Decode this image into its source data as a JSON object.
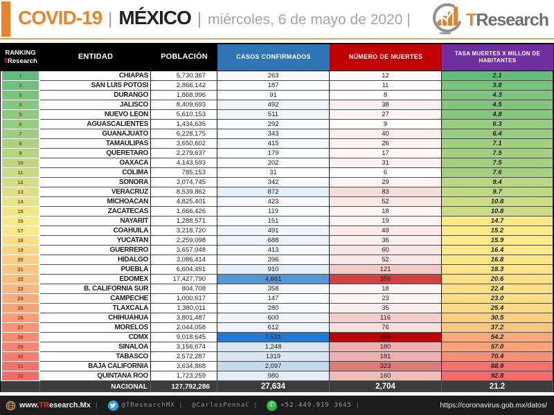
{
  "header": {
    "title": "COVID-19",
    "sep": "|",
    "country": "MÉXICO",
    "date": "miércoles, 6 de mayo de 2020 |",
    "logo_t": "T",
    "logo_rest": "Research",
    "accent_color": "#E4852E"
  },
  "table": {
    "headers": {
      "ranking_line1": "RANKING",
      "ranking_t": "T",
      "ranking_rest": "Research",
      "entidad": "ENTIDAD",
      "poblacion": "POBLACIÓN",
      "casos": "CASOS CONFIRMADOS",
      "muertes": "NÚMERO DE MUERTES",
      "tasa": "TASA MUERTES X MILLON DE HABITANTES",
      "casos_color": "#2E75B6",
      "muertes_color": "#C00000",
      "tasa_color": "#7030A0"
    },
    "rows": [
      {
        "rank": "1",
        "entidad": "CHIAPAS",
        "poblacion": "5,730,367",
        "casos": "263",
        "muertes": "12",
        "tasa": "2.1",
        "colors": {
          "rank": "#63BE7B",
          "casos": "#F7FAFD",
          "muertes": "#FEFAFA",
          "tasa": "#63BE7B"
        }
      },
      {
        "rank": "2",
        "entidad": "SAN LUIS POTOSI",
        "poblacion": "2,866,142",
        "casos": "187",
        "muertes": "11",
        "tasa": "3.8",
        "colors": {
          "rank": "#6DC17C",
          "casos": "#FDFEFF",
          "muertes": "#FEFAFA",
          "tasa": "#78C47C"
        }
      },
      {
        "rank": "3",
        "entidad": "DURANGO",
        "poblacion": "1,868,996",
        "casos": "91",
        "muertes": "8",
        "tasa": "4.3",
        "colors": {
          "rank": "#77C47C",
          "casos": "#FDFEFF",
          "muertes": "#FEFCFC",
          "tasa": "#7EC67D"
        }
      },
      {
        "rank": "4",
        "entidad": "JALISCO",
        "poblacion": "8,409,693",
        "casos": "492",
        "muertes": "38",
        "tasa": "4.5",
        "colors": {
          "rank": "#81C77D",
          "casos": "#EFF5FB",
          "muertes": "#FBEFEE",
          "tasa": "#80C67D"
        }
      },
      {
        "rank": "5",
        "entidad": "NUEVO LEON",
        "poblacion": "5,610,153",
        "casos": "511",
        "muertes": "27",
        "tasa": "4.8",
        "colors": {
          "rank": "#8BCA7D",
          "casos": "#EFF5FB",
          "muertes": "#FCF3F2",
          "tasa": "#84C77D"
        }
      },
      {
        "rank": "6",
        "entidad": "AGUASCALIENTES",
        "poblacion": "1,434,635",
        "casos": "292",
        "muertes": "9",
        "tasa": "6.3",
        "colors": {
          "rank": "#95CD7E",
          "casos": "#F7FAFD",
          "muertes": "#FEFBFB",
          "tasa": "#96CD7E"
        }
      },
      {
        "rank": "7",
        "entidad": "GUANAJUATO",
        "poblacion": "6,228,175",
        "casos": "343",
        "muertes": "40",
        "tasa": "6.4",
        "colors": {
          "rank": "#9FCF7E",
          "casos": "#F6F9FD",
          "muertes": "#FBEEED",
          "tasa": "#97CD7E"
        }
      },
      {
        "rank": "8",
        "entidad": "TAMAULIPAS",
        "poblacion": "3,650,602",
        "casos": "415",
        "muertes": "26",
        "tasa": "7.1",
        "colors": {
          "rank": "#AAD27F",
          "casos": "#F5F9FD",
          "muertes": "#FCF4F3",
          "tasa": "#A0CF7E"
        }
      },
      {
        "rank": "9",
        "entidad": "QUERETARO",
        "poblacion": "2,279,637",
        "casos": "179",
        "muertes": "17",
        "tasa": "7.5",
        "colors": {
          "rank": "#B4D580",
          "casos": "#FBFCFE",
          "muertes": "#FDF6F5",
          "tasa": "#A4D17F"
        }
      },
      {
        "rank": "10",
        "entidad": "OAXACA",
        "poblacion": "4,143,593",
        "casos": "202",
        "muertes": "31",
        "tasa": "7.5",
        "colors": {
          "rank": "#BED880",
          "casos": "#FAFCFE",
          "muertes": "#FCF2F1",
          "tasa": "#A4D17F"
        }
      },
      {
        "rank": "11",
        "entidad": "COLIMA",
        "poblacion": "785,153",
        "casos": "31",
        "muertes": "6",
        "tasa": "7.6",
        "colors": {
          "rank": "#C8DB81",
          "casos": "#FFFFFF",
          "muertes": "#FFFFFF",
          "tasa": "#A5D17F"
        }
      },
      {
        "rank": "12",
        "entidad": "SONORA",
        "poblacion": "3,074,745",
        "casos": "342",
        "muertes": "29",
        "tasa": "9.4",
        "colors": {
          "rank": "#D2DE81",
          "casos": "#F6F9FD",
          "muertes": "#FCF3F2",
          "tasa": "#BBD780"
        }
      },
      {
        "rank": "13",
        "entidad": "VERACRUZ",
        "poblacion": "8,539,862",
        "casos": "872",
        "muertes": "83",
        "tasa": "9.7",
        "colors": {
          "rank": "#DCE182",
          "casos": "#E4EEF9",
          "muertes": "#F6DCDA",
          "tasa": "#BFD980"
        }
      },
      {
        "rank": "14",
        "entidad": "MICHOACAN",
        "poblacion": "4,825,401",
        "casos": "423",
        "muertes": "52",
        "tasa": "10.8",
        "colors": {
          "rank": "#E6E483",
          "casos": "#F5F9FD",
          "muertes": "#F9E8E6",
          "tasa": "#CCDC81"
        }
      },
      {
        "rank": "15",
        "entidad": "ZACATECAS",
        "poblacion": "1,666,426",
        "casos": "119",
        "muertes": "18",
        "tasa": "10.8",
        "colors": {
          "rank": "#F0E783",
          "casos": "#FCFDFF",
          "muertes": "#FDF6F5",
          "tasa": "#CCDC81"
        }
      },
      {
        "rank": "16",
        "entidad": "NAYARIT",
        "poblacion": "1,288,571",
        "casos": "151",
        "muertes": "19",
        "tasa": "14.7",
        "colors": {
          "rank": "#FAEA84",
          "casos": "#FBFCFE",
          "muertes": "#FDF5F4",
          "tasa": "#FBEA84"
        }
      },
      {
        "rank": "17",
        "entidad": "COAHUILA",
        "poblacion": "3,218,720",
        "casos": "491",
        "muertes": "49",
        "tasa": "15.2",
        "colors": {
          "rank": "#FFE783",
          "casos": "#EFF5FB",
          "muertes": "#FAE9E7",
          "tasa": "#FFEB84"
        }
      },
      {
        "rank": "18",
        "entidad": "YUCATAN",
        "poblacion": "2,259,098",
        "casos": "688",
        "muertes": "36",
        "tasa": "15.9",
        "colors": {
          "rank": "#FFDE83",
          "casos": "#EAF2FA",
          "muertes": "#FBEFEE",
          "tasa": "#FFEA84"
        }
      },
      {
        "rank": "19",
        "entidad": "GUERRERO",
        "poblacion": "3,657,048",
        "casos": "413",
        "muertes": "60",
        "tasa": "16.4",
        "colors": {
          "rank": "#FED680",
          "casos": "#F5F9FD",
          "muertes": "#F8E4E2",
          "tasa": "#FFE984"
        }
      },
      {
        "rank": "20",
        "entidad": "HIDALGO",
        "poblacion": "3,086,414",
        "casos": "396",
        "muertes": "52",
        "tasa": "16.8",
        "colors": {
          "rank": "#FDCE7E",
          "casos": "#F6F9FD",
          "muertes": "#F9E8E6",
          "tasa": "#FFE884"
        }
      },
      {
        "rank": "21",
        "entidad": "PUEBLA",
        "poblacion": "6,604,451",
        "casos": "910",
        "muertes": "121",
        "tasa": "18.3",
        "colors": {
          "rank": "#FDC57D",
          "casos": "#E3EEF9",
          "muertes": "#F3CCCA",
          "tasa": "#FFE583"
        }
      },
      {
        "rank": "22",
        "entidad": "EDOMEX",
        "poblacion": "17,427,790",
        "casos": "4,661",
        "muertes": "359",
        "tasa": "20.6",
        "colors": {
          "rank": "#FDBD7B",
          "casos": "#5597D7",
          "muertes": "#D5413C",
          "tasa": "#FEE282"
        }
      },
      {
        "rank": "23",
        "entidad": "B. CALIFORNIA SUR",
        "poblacion": "804,708",
        "casos": "358",
        "muertes": "18",
        "tasa": "22.4",
        "colors": {
          "rank": "#FCB57A",
          "casos": "#F5F9FD",
          "muertes": "#FDF6F5",
          "tasa": "#FEDF82"
        }
      },
      {
        "rank": "24",
        "entidad": "CAMPECHE",
        "poblacion": "1,000,617",
        "casos": "147",
        "muertes": "23",
        "tasa": "23.0",
        "colors": {
          "rank": "#FCAC78",
          "casos": "#FCFDFF",
          "muertes": "#FDF5F4",
          "tasa": "#FEDE81"
        }
      },
      {
        "rank": "25",
        "entidad": "TLAXCALA",
        "poblacion": "1,380,011",
        "casos": "280",
        "muertes": "35",
        "tasa": "25.4",
        "colors": {
          "rank": "#FBA476",
          "casos": "#F8FAFD",
          "muertes": "#FBEFEE",
          "tasa": "#FEDA81"
        }
      },
      {
        "rank": "26",
        "entidad": "CHIHUAHUA",
        "poblacion": "3,801,487",
        "casos": "600",
        "muertes": "116",
        "tasa": "30.5",
        "colors": {
          "rank": "#FB9B75",
          "casos": "#EEF4FB",
          "muertes": "#F3CECC",
          "tasa": "#FED17F"
        }
      },
      {
        "rank": "27",
        "entidad": "MORELOS",
        "poblacion": "2,044,058",
        "casos": "612",
        "muertes": "76",
        "tasa": "37.2",
        "colors": {
          "rank": "#FA9373",
          "casos": "#EEF4FB",
          "muertes": "#F6DEDC",
          "tasa": "#FDC67D"
        }
      },
      {
        "rank": "28",
        "entidad": "CDMX",
        "poblacion": "9,018,645",
        "casos": "7,521",
        "muertes": "489",
        "tasa": "54.2",
        "colors": {
          "rank": "#FA8B71",
          "casos": "#1F7BD5",
          "muertes": "#C00000",
          "tasa": "#FBAA77",
          "casos_fg": "#47140E",
          "muertes_fg": "#300000"
        }
      },
      {
        "rank": "29",
        "entidad": "SINALOA",
        "poblacion": "3,156,674",
        "casos": "1,248",
        "muertes": "180",
        "tasa": "57.0",
        "colors": {
          "rank": "#F98270",
          "casos": "#D9E7F5",
          "muertes": "#EEB1AF",
          "tasa": "#FBA577"
        }
      },
      {
        "rank": "30",
        "entidad": "TABASCO",
        "poblacion": "2,572,287",
        "casos": "1319",
        "muertes": "181",
        "tasa": "70.4",
        "colors": {
          "rank": "#F97A6E",
          "casos": "#D8E6F5",
          "muertes": "#EEB0AE",
          "tasa": "#FA8E72"
        }
      },
      {
        "rank": "31",
        "entidad": "BAJA CALIFORNIA",
        "poblacion": "3,634,868",
        "casos": "2,097",
        "muertes": "323",
        "tasa": "88.9",
        "colors": {
          "rank": "#F8716D",
          "casos": "#C2D9F0",
          "muertes": "#DE7B78",
          "tasa": "#F8706C"
        }
      },
      {
        "rank": "32",
        "entidad": "QUINTANA ROO",
        "poblacion": "1,723,259",
        "casos": "980",
        "muertes": "160",
        "tasa": "92.8",
        "colors": {
          "rank": "#F8696B",
          "casos": "#E2EDF8",
          "muertes": "#F0BCBA",
          "tasa": "#F8696B"
        }
      }
    ],
    "total": {
      "label": "NACIONAL",
      "poblacion": "127,792,286",
      "casos": "27,634",
      "muertes": "2,704",
      "tasa": "21.2"
    }
  },
  "footer": {
    "website_prefix": "www.",
    "website_brand": "TR",
    "website_rest": "esearch.Mx",
    "twitter1": "@TResearchMX",
    "twitter2": "@CarlosPennaC",
    "phone": "+52.449.919 3645",
    "url": "https://coronavirus.gob.mx/datos/",
    "sep": "|"
  },
  "chart_data": {
    "type": "table",
    "title": "COVID-19 MÉXICO — miércoles, 6 de mayo de 2020",
    "columns": [
      "Ranking",
      "Entidad",
      "Población",
      "Casos confirmados",
      "Número de muertes",
      "Tasa muertes x millón de habitantes"
    ],
    "rows": [
      [
        1,
        "CHIAPAS",
        5730367,
        263,
        12,
        2.1
      ],
      [
        2,
        "SAN LUIS POTOSI",
        2866142,
        187,
        11,
        3.8
      ],
      [
        3,
        "DURANGO",
        1868996,
        91,
        8,
        4.3
      ],
      [
        4,
        "JALISCO",
        8409693,
        492,
        38,
        4.5
      ],
      [
        5,
        "NUEVO LEON",
        5610153,
        511,
        27,
        4.8
      ],
      [
        6,
        "AGUASCALIENTES",
        1434635,
        292,
        9,
        6.3
      ],
      [
        7,
        "GUANAJUATO",
        6228175,
        343,
        40,
        6.4
      ],
      [
        8,
        "TAMAULIPAS",
        3650602,
        415,
        26,
        7.1
      ],
      [
        9,
        "QUERETARO",
        2279637,
        179,
        17,
        7.5
      ],
      [
        10,
        "OAXACA",
        4143593,
        202,
        31,
        7.5
      ],
      [
        11,
        "COLIMA",
        785153,
        31,
        6,
        7.6
      ],
      [
        12,
        "SONORA",
        3074745,
        342,
        29,
        9.4
      ],
      [
        13,
        "VERACRUZ",
        8539862,
        872,
        83,
        9.7
      ],
      [
        14,
        "MICHOACAN",
        4825401,
        423,
        52,
        10.8
      ],
      [
        15,
        "ZACATECAS",
        1666426,
        119,
        18,
        10.8
      ],
      [
        16,
        "NAYARIT",
        1288571,
        151,
        19,
        14.7
      ],
      [
        17,
        "COAHUILA",
        3218720,
        491,
        49,
        15.2
      ],
      [
        18,
        "YUCATAN",
        2259098,
        688,
        36,
        15.9
      ],
      [
        19,
        "GUERRERO",
        3657048,
        413,
        60,
        16.4
      ],
      [
        20,
        "HIDALGO",
        3086414,
        396,
        52,
        16.8
      ],
      [
        21,
        "PUEBLA",
        6604451,
        910,
        121,
        18.3
      ],
      [
        22,
        "EDOMEX",
        17427790,
        4661,
        359,
        20.6
      ],
      [
        23,
        "B. CALIFORNIA SUR",
        804708,
        358,
        18,
        22.4
      ],
      [
        24,
        "CAMPECHE",
        1000617,
        147,
        23,
        23.0
      ],
      [
        25,
        "TLAXCALA",
        1380011,
        280,
        35,
        25.4
      ],
      [
        26,
        "CHIHUAHUA",
        3801487,
        600,
        116,
        30.5
      ],
      [
        27,
        "MORELOS",
        2044058,
        612,
        76,
        37.2
      ],
      [
        28,
        "CDMX",
        9018645,
        7521,
        489,
        54.2
      ],
      [
        29,
        "SINALOA",
        3156674,
        1248,
        180,
        57.0
      ],
      [
        30,
        "TABASCO",
        2572287,
        1319,
        181,
        70.4
      ],
      [
        31,
        "BAJA CALIFORNIA",
        3634868,
        2097,
        323,
        88.9
      ],
      [
        32,
        "QUINTANA ROO",
        1723259,
        980,
        160,
        92.8
      ]
    ],
    "total_row": [
      "",
      "NACIONAL",
      127792286,
      27634,
      2704,
      21.2
    ],
    "layout": {
      "heatmaps": {
        "ranking": "green-yellow-red by rank",
        "casos": "white-blue by value",
        "muertes": "white-red by value",
        "tasa": "green-yellow-red by value"
      }
    }
  }
}
